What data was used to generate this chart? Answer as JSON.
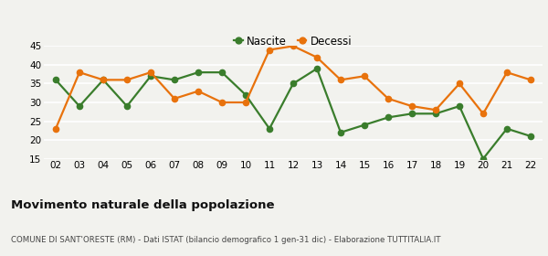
{
  "years": [
    "02",
    "03",
    "04",
    "05",
    "06",
    "07",
    "08",
    "09",
    "10",
    "11",
    "12",
    "13",
    "14",
    "15",
    "16",
    "17",
    "18",
    "19",
    "20",
    "21",
    "22"
  ],
  "nascite": [
    36,
    29,
    36,
    29,
    37,
    36,
    38,
    38,
    32,
    23,
    35,
    39,
    22,
    24,
    26,
    27,
    27,
    29,
    15,
    23,
    21
  ],
  "decessi": [
    23,
    38,
    36,
    36,
    38,
    31,
    33,
    30,
    30,
    44,
    45,
    42,
    36,
    37,
    31,
    29,
    28,
    35,
    27,
    38,
    36
  ],
  "nascite_color": "#3a7d2c",
  "decessi_color": "#e8720c",
  "title": "Movimento naturale della popolazione",
  "subtitle": "COMUNE DI SANT'ORESTE (RM) - Dati ISTAT (bilancio demografico 1 gen-31 dic) - Elaborazione TUTTITALIA.IT",
  "ylim": [
    15,
    45
  ],
  "yticks": [
    15,
    20,
    25,
    30,
    35,
    40,
    45
  ],
  "legend_nascite": "Nascite",
  "legend_decessi": "Decessi",
  "bg_color": "#f2f2ee",
  "grid_color": "#ffffff",
  "line_width": 1.6,
  "marker_size": 4.5
}
